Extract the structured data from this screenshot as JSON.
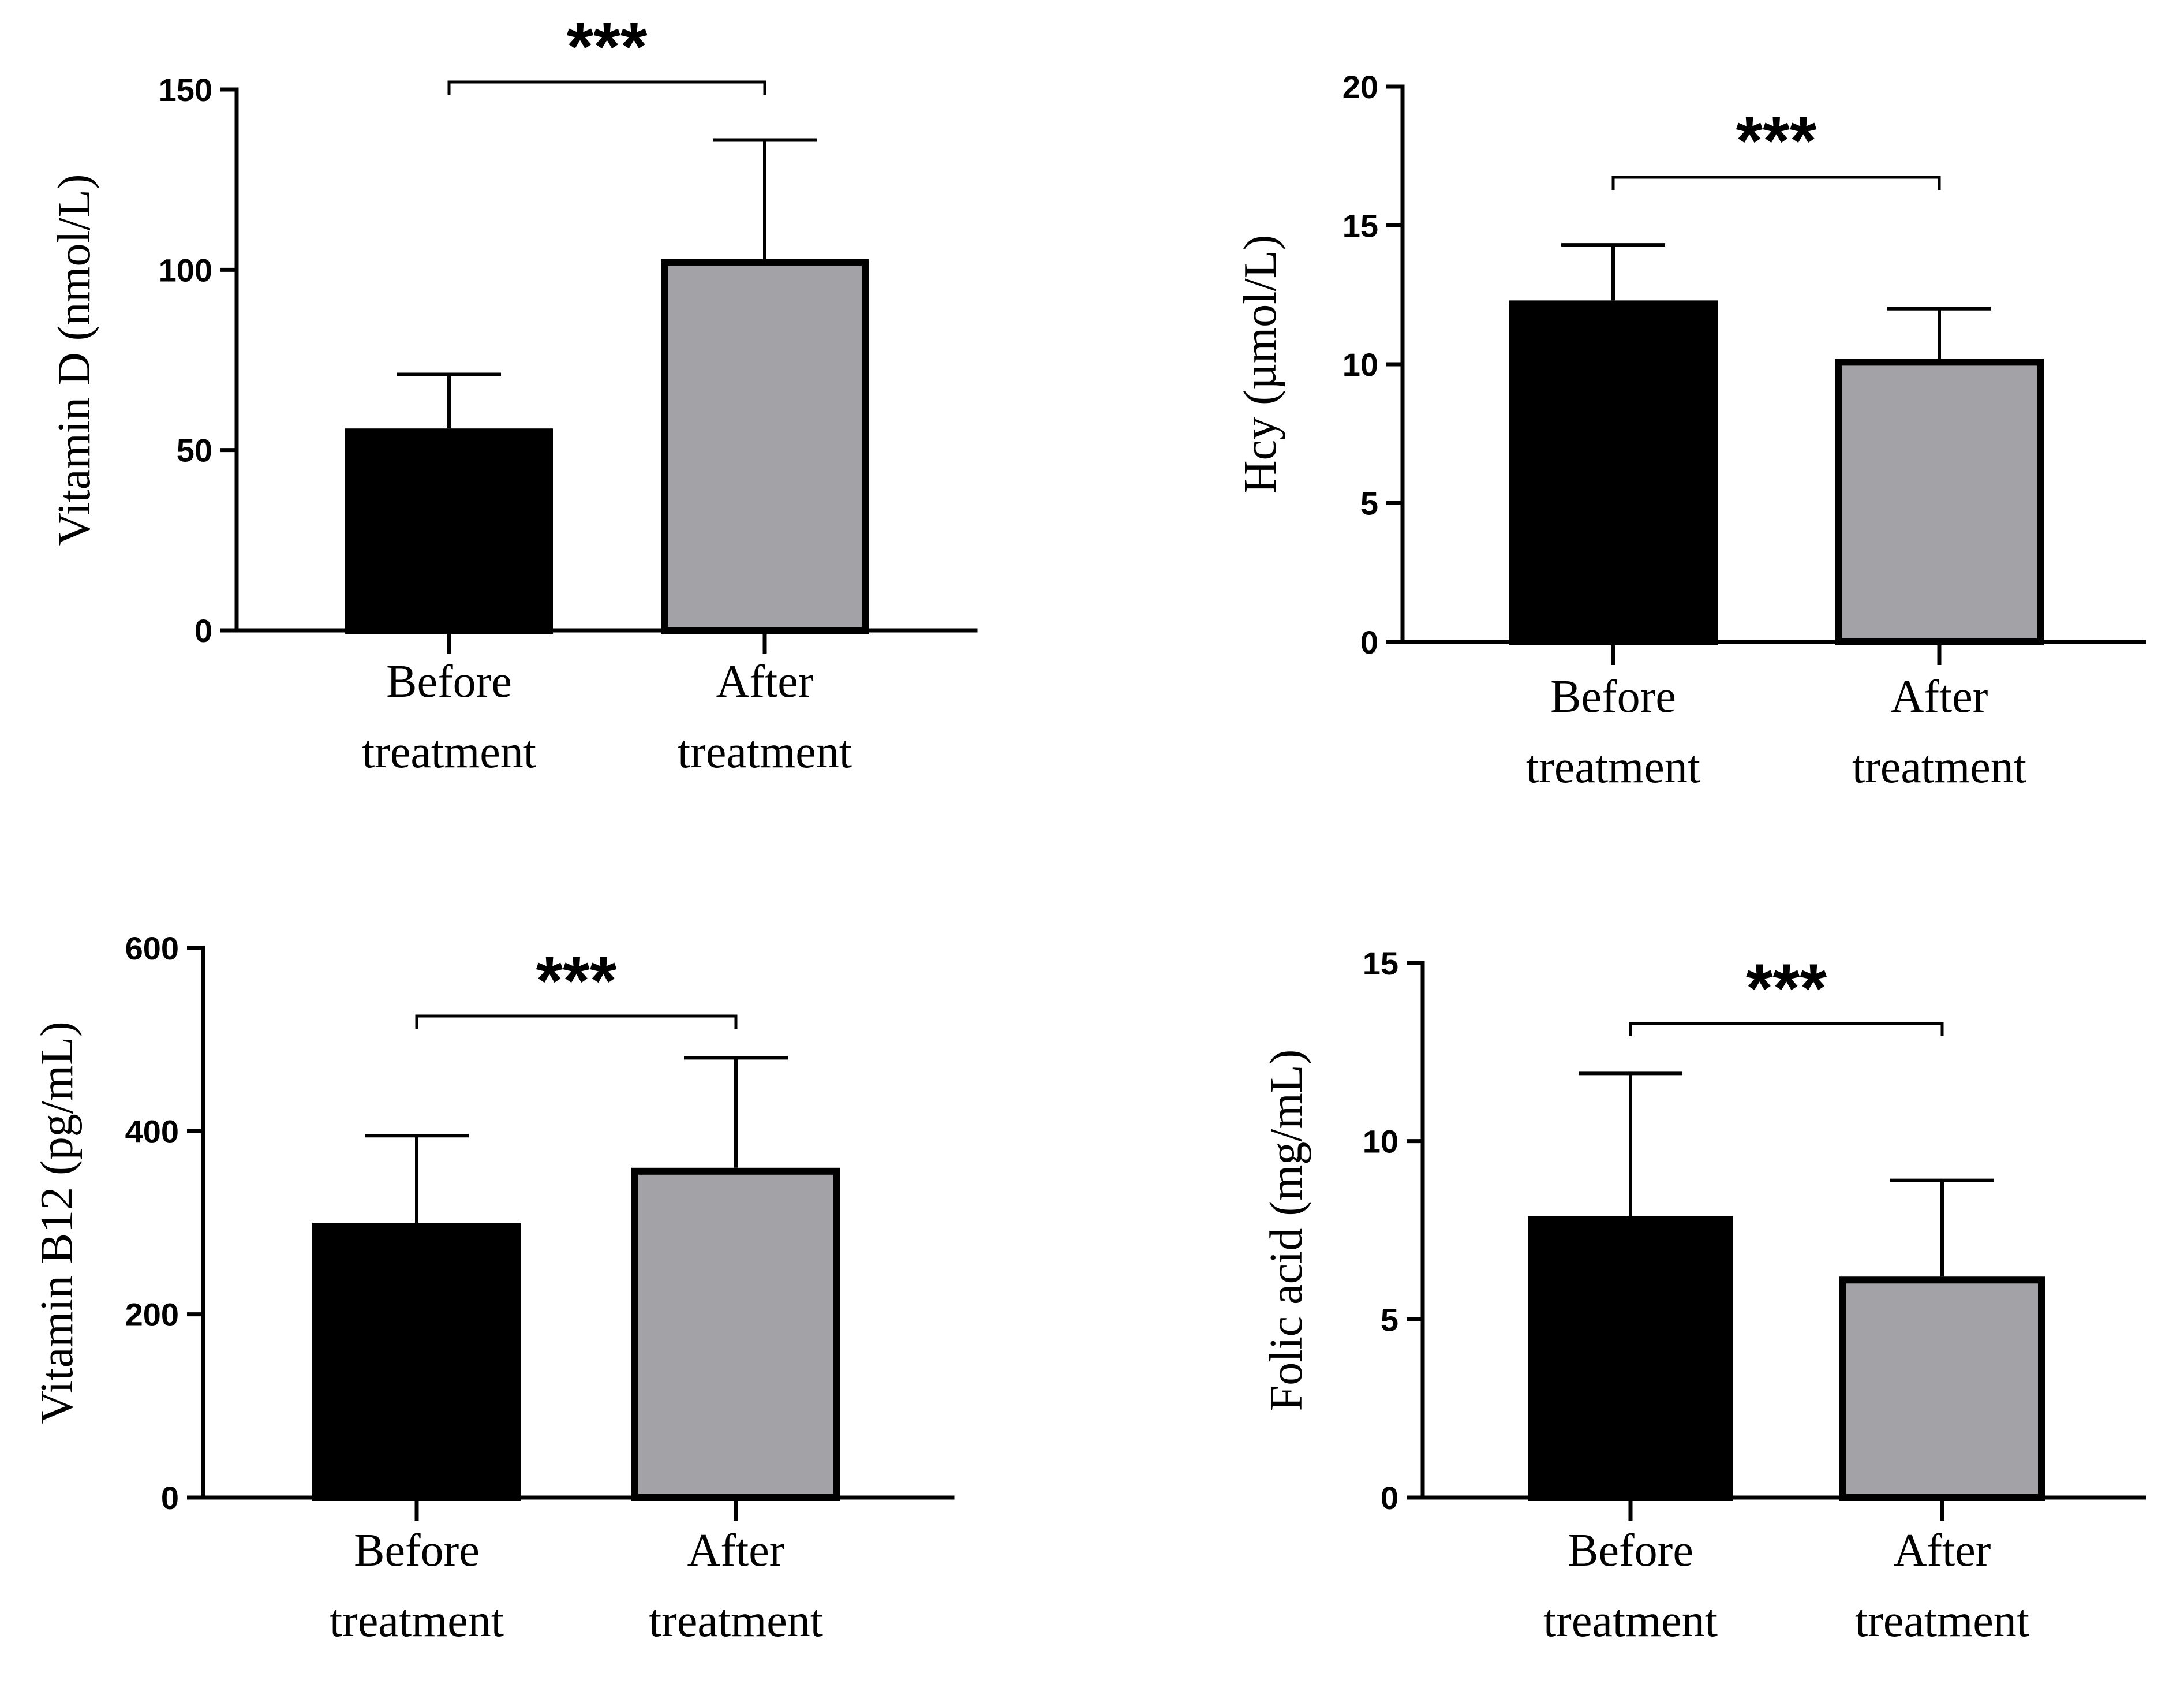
{
  "chart_data": [
    {
      "type": "bar",
      "ylabel": "Vitamin D (nmol/L)",
      "categories": [
        "Before treatment",
        "After treatment"
      ],
      "category_lines": [
        [
          "Before",
          "treatment"
        ],
        [
          "After",
          "treatment"
        ]
      ],
      "values": [
        56,
        103
      ],
      "errors": [
        15,
        33
      ],
      "bar_colors": [
        "#000000",
        "#a3a2a6"
      ],
      "ylim": [
        0,
        150
      ],
      "yticks": [
        0,
        50,
        100,
        150
      ],
      "significance": "***"
    },
    {
      "type": "bar",
      "ylabel": "Hcy (µmol/L)",
      "categories": [
        "Before treatment",
        "After treatment"
      ],
      "category_lines": [
        [
          "Before",
          "treatment"
        ],
        [
          "After",
          "treatment"
        ]
      ],
      "values": [
        12.3,
        10.2
      ],
      "errors": [
        2.0,
        1.8
      ],
      "bar_colors": [
        "#000000",
        "#a3a2a6"
      ],
      "ylim": [
        0,
        20
      ],
      "yticks": [
        0,
        5,
        10,
        15,
        20
      ],
      "significance": "***"
    },
    {
      "type": "bar",
      "ylabel": "Vitamin B12 (pg/mL)",
      "categories": [
        "Before treatment",
        "After treatment"
      ],
      "category_lines": [
        [
          "Before",
          "treatment"
        ],
        [
          "After",
          "treatment"
        ]
      ],
      "values": [
        300,
        360
      ],
      "errors": [
        95,
        120
      ],
      "bar_colors": [
        "#000000",
        "#a3a2a6"
      ],
      "ylim": [
        0,
        600
      ],
      "yticks": [
        0,
        200,
        400,
        600
      ],
      "significance": "***"
    },
    {
      "type": "bar",
      "ylabel": "Folic acid (mg/mL)",
      "categories": [
        "Before treatment",
        "After treatment"
      ],
      "category_lines": [
        [
          "Before",
          "treatment"
        ],
        [
          "After",
          "treatment"
        ]
      ],
      "values": [
        7.9,
        6.2
      ],
      "errors": [
        4.0,
        2.7
      ],
      "bar_colors": [
        "#000000",
        "#a3a2a6"
      ],
      "ylim": [
        0,
        15
      ],
      "yticks": [
        0,
        5,
        10,
        15
      ],
      "significance": "***"
    }
  ]
}
